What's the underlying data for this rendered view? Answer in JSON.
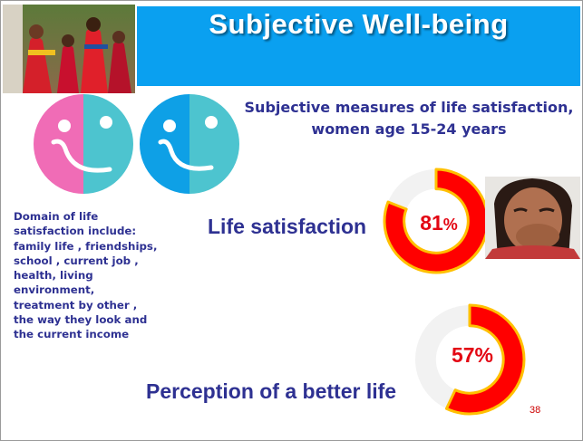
{
  "slide": {
    "title": "Subjective Well-being",
    "subtitle_line1": "Subjective measures of life satisfaction,",
    "subtitle_line2": "women age 15-24 years",
    "domain_text": [
      "Domain of life",
      "satisfaction include:",
      "family life , friendships,",
      "school , current job ,",
      "health, living",
      "environment,",
      "treatment by other ,",
      "the way they look and",
      "the current income"
    ],
    "page_number": "38",
    "images": {
      "group_photo": "women in red dresses dancing",
      "portrait_photo": "smiling woman covering mouth",
      "faces_icon": "pink-and-teal face icon and blue-and-teal face icon"
    }
  },
  "chart_data": [
    {
      "type": "pie",
      "label": "Life satisfaction",
      "value": 81,
      "unit": "%",
      "value_text": "81",
      "unit_text": "%",
      "colors": {
        "fill": "#ff0000",
        "border": "#ffc000",
        "remainder": "#f2f2f2"
      }
    },
    {
      "type": "pie",
      "label": "Perception of a better life",
      "value": 57,
      "unit": "%",
      "value_text": "57%",
      "colors": {
        "fill": "#ff0000",
        "border": "#ffc000",
        "remainder": "#f2f2f2"
      }
    }
  ]
}
